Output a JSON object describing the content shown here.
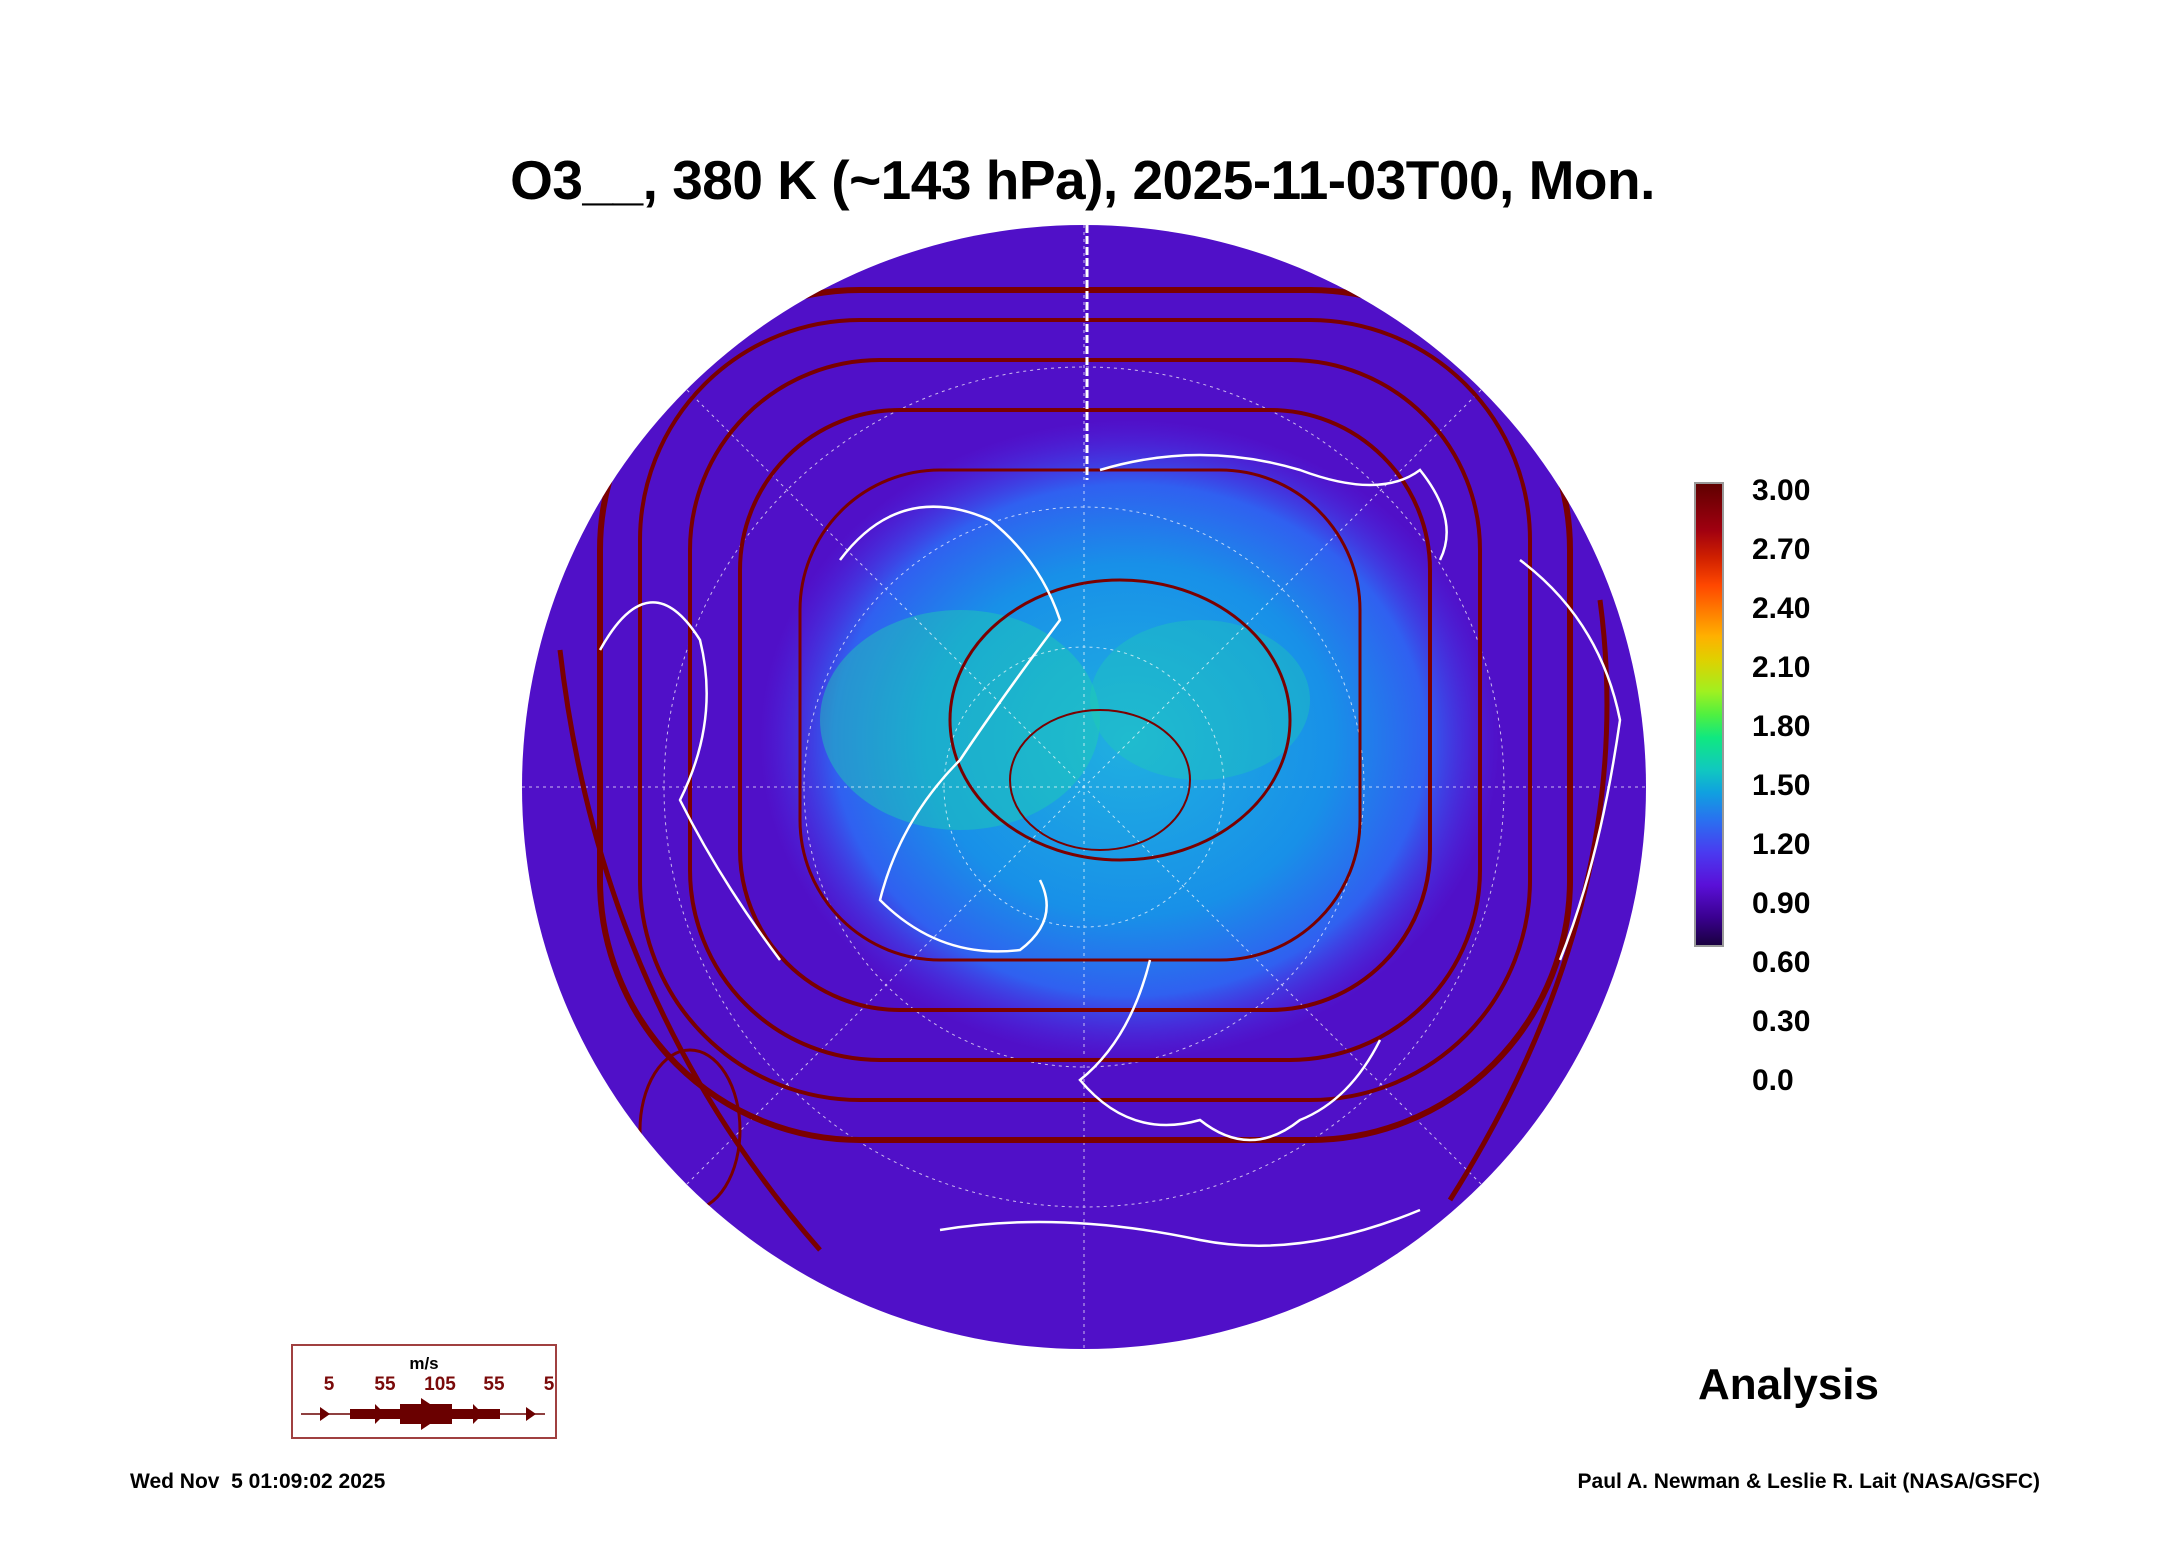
{
  "title": "O3__, 380 K (~143 hPa), 2025-11-03T00, Mon.",
  "colorbar": {
    "ticks": [
      "3.00",
      "2.70",
      "2.40",
      "2.10",
      "1.80",
      "1.50",
      "1.20",
      "0.90",
      "0.60",
      "0.30",
      "0.0"
    ],
    "range": [
      0.0,
      3.0
    ]
  },
  "wind_legend": {
    "unit": "m/s",
    "values": [
      "5",
      "55",
      "105",
      "55",
      "5"
    ],
    "color": "#6a0000"
  },
  "label": "Analysis",
  "footer": {
    "timestamp": "Wed Nov  5 01:09:02 2025",
    "credit": "Paul A. Newman & Leslie R. Lait (NASA/GSFC)"
  }
}
